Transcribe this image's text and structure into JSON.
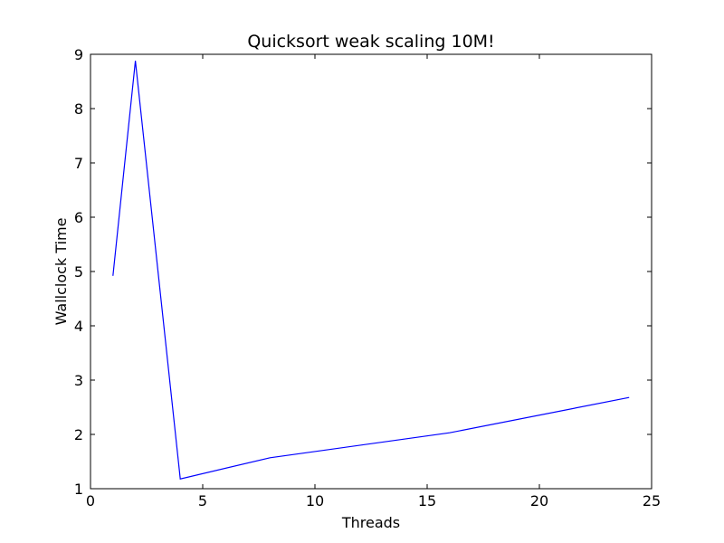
{
  "chart_data": {
    "type": "line",
    "title": "Quicksort weak scaling 10M!",
    "xlabel": "Threads",
    "ylabel": "Wallclock Time",
    "xlim": [
      0,
      25
    ],
    "ylim": [
      1,
      9
    ],
    "xticks": [
      0,
      5,
      10,
      15,
      20,
      25
    ],
    "yticks": [
      1,
      2,
      3,
      4,
      5,
      6,
      7,
      8,
      9
    ],
    "grid": false,
    "series": [
      {
        "color": "#0000ff",
        "x": [
          1,
          2,
          4,
          8,
          16,
          24
        ],
        "y": [
          4.92,
          8.88,
          1.18,
          1.57,
          2.03,
          2.68
        ]
      }
    ]
  }
}
